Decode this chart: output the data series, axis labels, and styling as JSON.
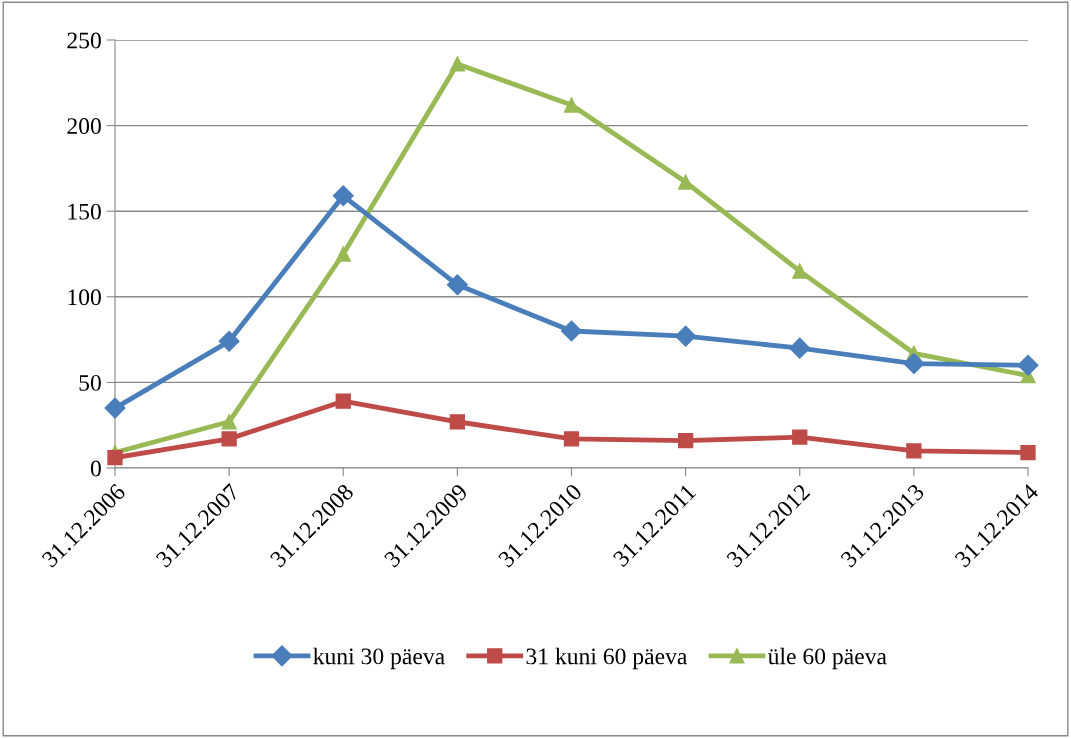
{
  "chart_data": {
    "type": "line",
    "categories": [
      "31.12.2006",
      "31.12.2007",
      "31.12.2008",
      "31.12.2009",
      "31.12.2010",
      "31.12.2011",
      "31.12.2012",
      "31.12.2013",
      "31.12.2014"
    ],
    "series": [
      {
        "name": "kuni 30 päeva",
        "color": "#4a7ebb",
        "marker": "diamond",
        "values": [
          35,
          74,
          159,
          107,
          80,
          77,
          70,
          61,
          60
        ]
      },
      {
        "name": "31 kuni 60 päeva",
        "color": "#be4b48",
        "marker": "square",
        "values": [
          6,
          17,
          39,
          27,
          17,
          16,
          18,
          10,
          9
        ]
      },
      {
        "name": "üle 60 päeva",
        "color": "#98b954",
        "marker": "triangle",
        "values": [
          9,
          27,
          125,
          236,
          212,
          167,
          115,
          67,
          54
        ]
      }
    ],
    "ylim": [
      0,
      250
    ],
    "yticks": [
      0,
      50,
      100,
      150,
      200,
      250
    ],
    "grid": "y",
    "legend": "bottom",
    "line_style": "solid"
  }
}
